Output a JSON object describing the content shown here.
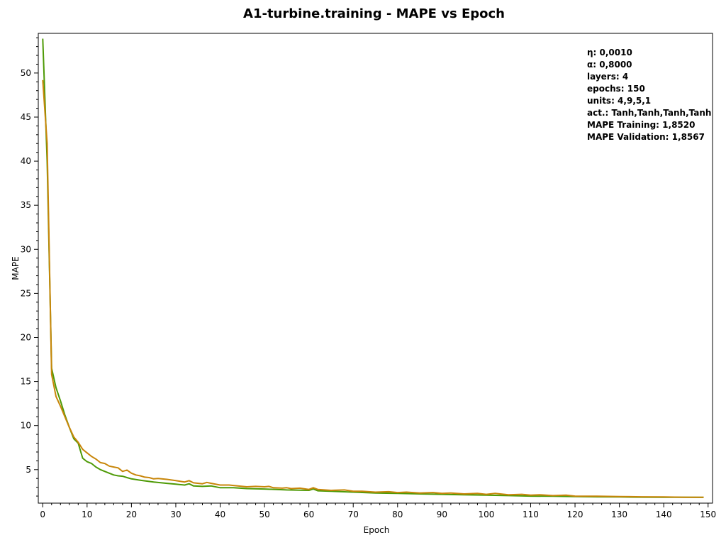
{
  "chart_data": {
    "type": "line",
    "title": "A1-turbine.training - MAPE vs Epoch",
    "xlabel": "Epoch",
    "ylabel": "MAPE",
    "xlim": [
      -1,
      151
    ],
    "ylim": [
      1.2,
      54.5
    ],
    "xticks": [
      0,
      10,
      20,
      30,
      40,
      50,
      60,
      70,
      80,
      90,
      100,
      110,
      120,
      130,
      140,
      150
    ],
    "yticks": [
      5,
      10,
      15,
      20,
      25,
      30,
      35,
      40,
      45,
      50
    ],
    "x_minor_step": 2,
    "y_minor_step": 1,
    "grid": false,
    "legend": "none",
    "info_box": {
      "placement": "top-right",
      "lines": [
        "η: 0,0010",
        "α: 0,8000",
        "layers: 4",
        "epochs: 150",
        "units: 4,9,5,1",
        "act.: Tanh,Tanh,Tanh,Tanh",
        "MAPE Training: 1,8520",
        "MAPE Validation: 1,8567"
      ]
    },
    "series": [
      {
        "color": "#4e9a06",
        "points": [
          [
            0,
            53.9
          ],
          [
            1,
            40
          ],
          [
            2,
            16.5
          ],
          [
            3,
            14.3
          ],
          [
            4,
            12.8
          ],
          [
            5,
            11.2
          ],
          [
            6,
            9.8
          ],
          [
            7,
            8.5
          ],
          [
            8,
            8
          ],
          [
            9,
            6.3
          ],
          [
            10,
            5.9
          ],
          [
            11,
            5.7
          ],
          [
            12,
            5.3
          ],
          [
            13,
            5
          ],
          [
            14,
            4.8
          ],
          [
            15,
            4.6
          ],
          [
            16,
            4.4
          ],
          [
            17,
            4.3
          ],
          [
            18,
            4.25
          ],
          [
            19,
            4.1
          ],
          [
            20,
            3.95
          ],
          [
            22,
            3.8
          ],
          [
            25,
            3.6
          ],
          [
            28,
            3.45
          ],
          [
            30,
            3.35
          ],
          [
            32,
            3.25
          ],
          [
            33,
            3.4
          ],
          [
            34,
            3.15
          ],
          [
            36,
            3.1
          ],
          [
            38,
            3.15
          ],
          [
            40,
            2.95
          ],
          [
            43,
            2.95
          ],
          [
            46,
            2.85
          ],
          [
            50,
            2.8
          ],
          [
            55,
            2.7
          ],
          [
            60,
            2.65
          ],
          [
            61,
            2.8
          ],
          [
            62,
            2.6
          ],
          [
            65,
            2.55
          ],
          [
            70,
            2.45
          ],
          [
            75,
            2.35
          ],
          [
            80,
            2.3
          ],
          [
            85,
            2.25
          ],
          [
            90,
            2.2
          ],
          [
            95,
            2.15
          ],
          [
            100,
            2.1
          ],
          [
            105,
            2.05
          ],
          [
            110,
            2
          ],
          [
            115,
            1.98
          ],
          [
            120,
            1.95
          ],
          [
            125,
            1.92
          ],
          [
            130,
            1.9
          ],
          [
            135,
            1.88
          ],
          [
            140,
            1.87
          ],
          [
            145,
            1.86
          ],
          [
            149,
            1.852
          ]
        ]
      },
      {
        "color": "#c8860a",
        "points": [
          [
            0,
            49.2
          ],
          [
            1,
            42
          ],
          [
            2,
            15.8
          ],
          [
            3,
            13.3
          ],
          [
            4,
            12.2
          ],
          [
            5,
            11
          ],
          [
            6,
            9.8
          ],
          [
            7,
            8.7
          ],
          [
            8,
            8.1
          ],
          [
            9,
            7.3
          ],
          [
            10,
            6.9
          ],
          [
            11,
            6.5
          ],
          [
            12,
            6.2
          ],
          [
            13,
            5.8
          ],
          [
            14,
            5.7
          ],
          [
            15,
            5.4
          ],
          [
            16,
            5.3
          ],
          [
            17,
            5.2
          ],
          [
            18,
            4.8
          ],
          [
            19,
            4.95
          ],
          [
            20,
            4.6
          ],
          [
            21,
            4.4
          ],
          [
            22,
            4.3
          ],
          [
            23,
            4.15
          ],
          [
            24,
            4.1
          ],
          [
            25,
            3.95
          ],
          [
            26,
            4.0
          ],
          [
            28,
            3.9
          ],
          [
            30,
            3.75
          ],
          [
            32,
            3.6
          ],
          [
            33,
            3.75
          ],
          [
            34,
            3.5
          ],
          [
            36,
            3.4
          ],
          [
            37,
            3.55
          ],
          [
            38,
            3.45
          ],
          [
            40,
            3.25
          ],
          [
            42,
            3.25
          ],
          [
            44,
            3.15
          ],
          [
            46,
            3.05
          ],
          [
            48,
            3.1
          ],
          [
            50,
            3.05
          ],
          [
            51,
            3.1
          ],
          [
            52,
            2.95
          ],
          [
            54,
            2.9
          ],
          [
            55,
            2.95
          ],
          [
            56,
            2.85
          ],
          [
            58,
            2.9
          ],
          [
            60,
            2.75
          ],
          [
            61,
            2.95
          ],
          [
            62,
            2.75
          ],
          [
            65,
            2.65
          ],
          [
            68,
            2.7
          ],
          [
            70,
            2.55
          ],
          [
            72,
            2.55
          ],
          [
            75,
            2.45
          ],
          [
            78,
            2.5
          ],
          [
            80,
            2.4
          ],
          [
            82,
            2.45
          ],
          [
            85,
            2.35
          ],
          [
            88,
            2.4
          ],
          [
            90,
            2.3
          ],
          [
            92,
            2.35
          ],
          [
            95,
            2.25
          ],
          [
            98,
            2.3
          ],
          [
            100,
            2.2
          ],
          [
            102,
            2.3
          ],
          [
            105,
            2.15
          ],
          [
            108,
            2.2
          ],
          [
            110,
            2.1
          ],
          [
            112,
            2.15
          ],
          [
            115,
            2.05
          ],
          [
            118,
            2.1
          ],
          [
            120,
            2
          ],
          [
            125,
            1.98
          ],
          [
            130,
            1.95
          ],
          [
            135,
            1.92
          ],
          [
            140,
            1.9
          ],
          [
            145,
            1.87
          ],
          [
            149,
            1.857
          ]
        ]
      }
    ]
  }
}
